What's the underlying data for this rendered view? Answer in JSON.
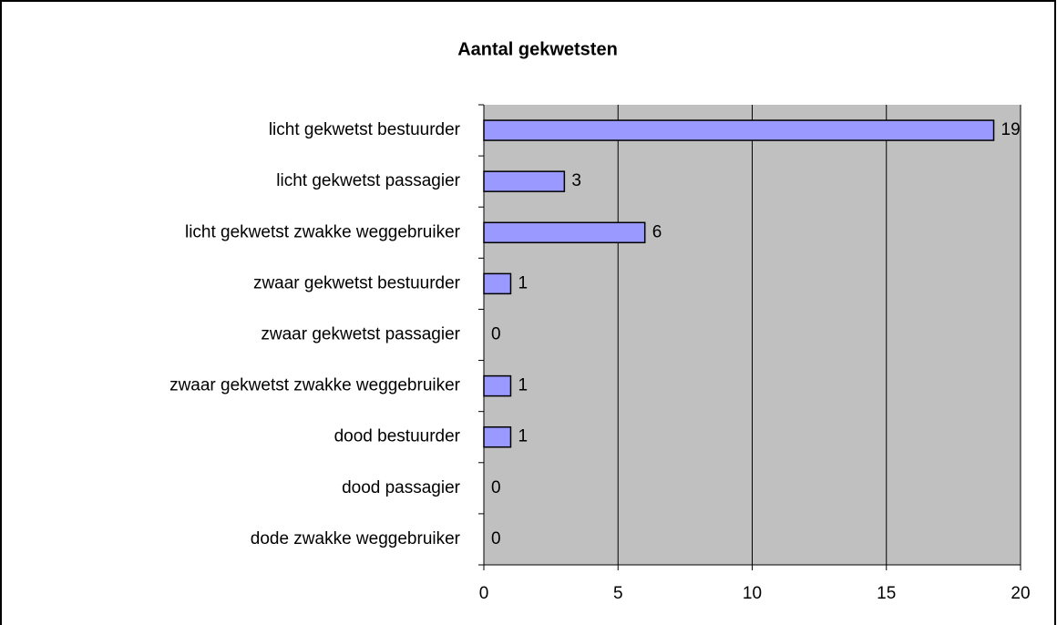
{
  "chart_data": {
    "type": "bar",
    "orientation": "horizontal",
    "title": "Aantal gekwetsten",
    "categories": [
      "licht gekwetst bestuurder",
      "licht gekwetst passagier",
      "licht gekwetst zwakke weggebruiker",
      "zwaar gekwetst bestuurder",
      "zwaar gekwetst passagier",
      "zwaar gekwetst zwakke weggebruiker",
      "dood bestuurder",
      "dood passagier",
      "dode zwakke weggebruiker"
    ],
    "values": [
      19,
      3,
      6,
      1,
      0,
      1,
      1,
      0,
      0
    ],
    "color": "#9999ff",
    "xlim": [
      0,
      20
    ],
    "xticks": [
      0,
      5,
      10,
      15,
      20
    ],
    "grid": true
  }
}
